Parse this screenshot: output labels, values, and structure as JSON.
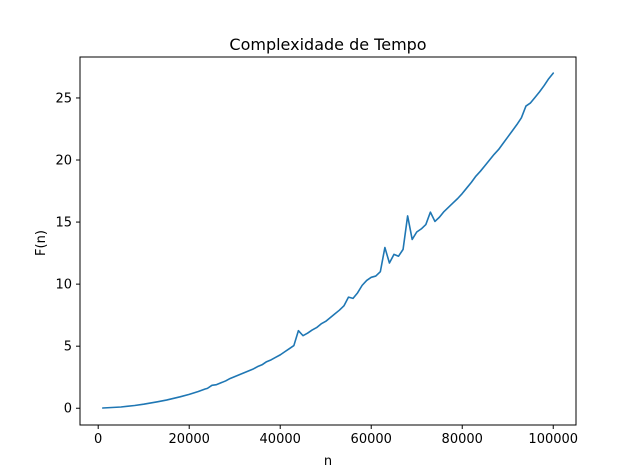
{
  "chart_data": {
    "type": "line",
    "title": "Complexidade de Tempo",
    "xlabel": "n",
    "ylabel": "F(n)",
    "xlim": [
      -4000,
      105000
    ],
    "ylim": [
      -1.35,
      28.3
    ],
    "x_ticks": [
      0,
      20000,
      40000,
      60000,
      80000,
      100000
    ],
    "x_tick_labels": [
      "0",
      "20000",
      "40000",
      "60000",
      "80000",
      "100000"
    ],
    "y_ticks": [
      0,
      5,
      10,
      15,
      20,
      25
    ],
    "y_tick_labels": [
      "0",
      "5",
      "10",
      "15",
      "20",
      "25"
    ],
    "grid": false,
    "legend": "none",
    "series": [
      {
        "color": "#1f77b4",
        "x": [
          1000,
          5000,
          8000,
          10000,
          13000,
          15000,
          18000,
          20000,
          22000,
          23500,
          24000,
          25000,
          26000,
          27000,
          28000,
          29000,
          30000,
          31000,
          32000,
          33000,
          34000,
          35000,
          36000,
          37000,
          38000,
          39000,
          40000,
          41000,
          42000,
          43000,
          44000,
          45000,
          46000,
          47000,
          48000,
          49000,
          50000,
          51000,
          52000,
          53000,
          54000,
          55000,
          56000,
          57000,
          58000,
          59000,
          60000,
          61000,
          62000,
          63000,
          64000,
          65000,
          66000,
          67000,
          68000,
          69000,
          70000,
          71000,
          72000,
          73000,
          74000,
          75000,
          76000,
          77000,
          78000,
          79000,
          80000,
          81000,
          82000,
          83000,
          84000,
          85000,
          86000,
          87000,
          88000,
          89000,
          90000,
          91000,
          92000,
          93000,
          94000,
          95000,
          96000,
          97000,
          98000,
          99000,
          100000
        ],
        "y": [
          0.02,
          0.1,
          0.22,
          0.33,
          0.52,
          0.66,
          0.92,
          1.12,
          1.35,
          1.55,
          1.6,
          1.85,
          1.9,
          2.05,
          2.2,
          2.4,
          2.55,
          2.7,
          2.85,
          3.0,
          3.15,
          3.35,
          3.5,
          3.75,
          3.9,
          4.1,
          4.3,
          4.55,
          4.8,
          5.05,
          6.25,
          5.85,
          6.05,
          6.3,
          6.5,
          6.8,
          7.0,
          7.3,
          7.6,
          7.9,
          8.25,
          8.95,
          8.85,
          9.3,
          9.9,
          10.3,
          10.55,
          10.65,
          11.0,
          12.95,
          11.7,
          12.4,
          12.25,
          12.8,
          15.5,
          13.6,
          14.2,
          14.45,
          14.8,
          15.8,
          15.05,
          15.4,
          15.85,
          16.2,
          16.55,
          16.9,
          17.3,
          17.75,
          18.2,
          18.7,
          19.1,
          19.55,
          20.0,
          20.45,
          20.85,
          21.35,
          21.85,
          22.35,
          22.85,
          23.4,
          24.35,
          24.6,
          25.05,
          25.5,
          26.0,
          26.55,
          27.0
        ]
      }
    ]
  }
}
